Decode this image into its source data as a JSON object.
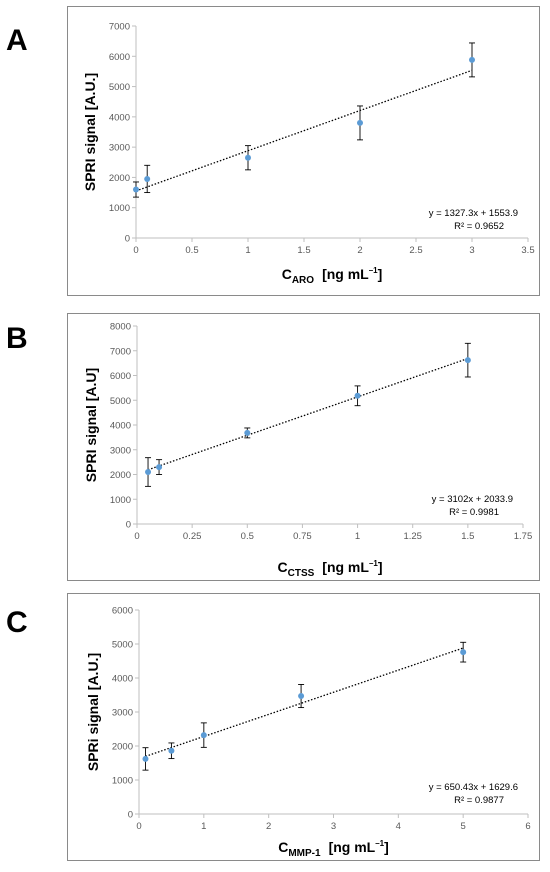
{
  "chart_data": [
    {
      "type": "scatter",
      "panel_label": "A",
      "ylabel": "SPRI signal [A.U.]",
      "xlabel_main": "C",
      "xlabel_sub": "ARO",
      "xlabel_units": "[ng mL",
      "xlabel_exp": "–1",
      "xlabel_close": "]",
      "xlim": [
        0,
        3.5
      ],
      "ylim": [
        0,
        7000
      ],
      "xticks": [
        0,
        0.5,
        1,
        1.5,
        2,
        2.5,
        3,
        3.5
      ],
      "xtick_labels": [
        "0",
        "0.5",
        "1",
        "1.5",
        "2",
        "2.5",
        "3",
        "3.5"
      ],
      "yticks": [
        0,
        1000,
        2000,
        3000,
        4000,
        5000,
        6000,
        7000
      ],
      "ytick_labels": [
        "0",
        "1000",
        "2000",
        "3000",
        "4000",
        "5000",
        "6000",
        "7000"
      ],
      "series": [
        {
          "x": [
            0,
            0.1,
            1,
            2,
            3
          ],
          "y": [
            1600,
            1950,
            2650,
            3800,
            5880
          ],
          "err": [
            250,
            450,
            400,
            560,
            560
          ]
        }
      ],
      "trendline": {
        "slope": 1327.3,
        "intercept": 1553.9
      },
      "equation": "y = 1327.3x + 1553.9",
      "r2_label": "R² = 0.9652",
      "grid": false,
      "marker_color": "#5b9bd5"
    },
    {
      "type": "scatter",
      "panel_label": "B",
      "ylabel": "SPRI signal [A.U]",
      "xlabel_main": "C",
      "xlabel_sub": "CTSS",
      "xlabel_units": "[ng mL",
      "xlabel_exp": "–1",
      "xlabel_close": "]",
      "xlim": [
        0,
        1.75
      ],
      "ylim": [
        0,
        8000
      ],
      "xticks": [
        0,
        0.25,
        0.5,
        0.75,
        1,
        1.25,
        1.5,
        1.75
      ],
      "xtick_labels": [
        "0",
        "0.25",
        "0.5",
        "0.75",
        "1",
        "1.25",
        "1.5",
        "1.75"
      ],
      "yticks": [
        0,
        1000,
        2000,
        3000,
        4000,
        5000,
        6000,
        7000,
        8000
      ],
      "ytick_labels": [
        "0",
        "1000",
        "2000",
        "3000",
        "4000",
        "5000",
        "6000",
        "7000",
        "8000"
      ],
      "series": [
        {
          "x": [
            0.05,
            0.1,
            0.5,
            1,
            1.5
          ],
          "y": [
            2100,
            2300,
            3680,
            5180,
            6620
          ],
          "err": [
            580,
            300,
            200,
            400,
            680
          ]
        }
      ],
      "trendline": {
        "slope": 3102,
        "intercept": 2033.9
      },
      "equation": "y = 3102x + 2033.9",
      "r2_label": "R² = 0.9981",
      "grid": false,
      "marker_color": "#5b9bd5"
    },
    {
      "type": "scatter",
      "panel_label": "C",
      "ylabel": "SPRi signal [A.U.]",
      "xlabel_main": "C",
      "xlabel_sub": "MMP-1",
      "xlabel_units": "[ng mL",
      "xlabel_exp": "–1",
      "xlabel_close": "]",
      "xlim": [
        0,
        6
      ],
      "ylim": [
        0,
        6000
      ],
      "xticks": [
        0,
        1,
        2,
        3,
        4,
        5,
        6
      ],
      "xtick_labels": [
        "0",
        "1",
        "2",
        "3",
        "4",
        "5",
        "6"
      ],
      "yticks": [
        0,
        1000,
        2000,
        3000,
        4000,
        5000,
        6000
      ],
      "ytick_labels": [
        "0",
        "1000",
        "2000",
        "3000",
        "4000",
        "5000",
        "6000"
      ],
      "series": [
        {
          "x": [
            0.1,
            0.5,
            1,
            2.5,
            5
          ],
          "y": [
            1620,
            1860,
            2320,
            3470,
            4760
          ],
          "err": [
            330,
            230,
            360,
            340,
            290
          ]
        }
      ],
      "trendline": {
        "slope": 650.43,
        "intercept": 1629.6
      },
      "equation": "y = 650.43x + 1629.6",
      "r2_label": "R² = 0.9877",
      "grid": false,
      "marker_color": "#5b9bd5"
    }
  ]
}
